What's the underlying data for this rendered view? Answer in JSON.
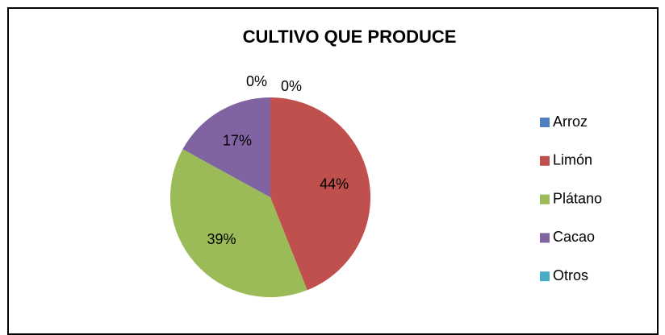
{
  "chart_data": {
    "type": "pie",
    "title": "CULTIVO QUE PRODUCE",
    "categories": [
      "Arroz",
      "Limón",
      "Plátano",
      "Cacao",
      "Otros"
    ],
    "values": [
      0,
      44,
      39,
      17,
      0
    ],
    "value_labels": [
      "0%",
      "44%",
      "39%",
      "17%",
      "0%"
    ],
    "colors": [
      "#4f81bd",
      "#c0504d",
      "#9bbb59",
      "#8064a2",
      "#4bacc6"
    ],
    "legend": "right"
  }
}
